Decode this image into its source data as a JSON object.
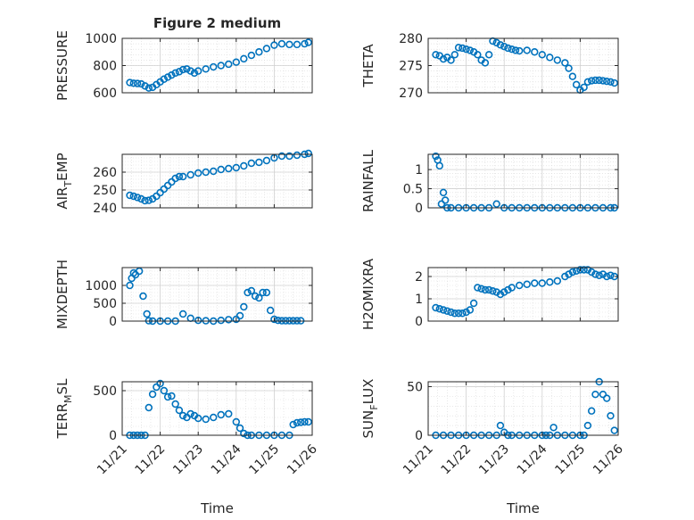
{
  "figure_title": "Figure 2 medium",
  "x_axis_label": "Time",
  "x_tick_labels": [
    "11/21",
    "11/22",
    "11/23",
    "11/24",
    "11/25",
    "11/26"
  ],
  "marker_color": "#0072BD",
  "chart_data": [
    {
      "type": "scatter",
      "ylabel": "PRESSURE",
      "title": "Figure 2 medium",
      "ylim": [
        600,
        1000
      ],
      "yticks": [
        600,
        800,
        1000
      ],
      "xlim": [
        0,
        5
      ],
      "grid": true,
      "x": [
        0.2,
        0.3,
        0.4,
        0.5,
        0.6,
        0.7,
        0.8,
        0.9,
        1.0,
        1.1,
        1.2,
        1.3,
        1.4,
        1.5,
        1.6,
        1.7,
        1.8,
        1.9,
        2.0,
        2.2,
        2.4,
        2.6,
        2.8,
        3.0,
        3.2,
        3.4,
        3.6,
        3.8,
        4.0,
        4.2,
        4.4,
        4.6,
        4.8,
        4.9
      ],
      "y": [
        675,
        670,
        668,
        665,
        650,
        635,
        640,
        660,
        680,
        700,
        715,
        730,
        745,
        755,
        770,
        775,
        760,
        745,
        760,
        775,
        790,
        800,
        810,
        825,
        850,
        875,
        900,
        925,
        950,
        960,
        955,
        955,
        960,
        970
      ]
    },
    {
      "type": "scatter",
      "ylabel": "THETA",
      "ylim": [
        270,
        280
      ],
      "yticks": [
        270,
        275,
        280
      ],
      "xlim": [
        0,
        5
      ],
      "grid": true,
      "x": [
        0.2,
        0.3,
        0.4,
        0.5,
        0.6,
        0.7,
        0.8,
        0.9,
        1.0,
        1.1,
        1.2,
        1.3,
        1.4,
        1.5,
        1.6,
        1.7,
        1.8,
        1.9,
        2.0,
        2.1,
        2.2,
        2.3,
        2.4,
        2.6,
        2.8,
        3.0,
        3.2,
        3.4,
        3.6,
        3.7,
        3.8,
        3.9,
        4.0,
        4.1,
        4.2,
        4.3,
        4.4,
        4.5,
        4.6,
        4.7,
        4.8,
        4.9
      ],
      "y": [
        277,
        276.8,
        276.2,
        276.5,
        276,
        277,
        278.3,
        278.2,
        278,
        277.8,
        277.5,
        277,
        276,
        275.5,
        277,
        279.5,
        279.2,
        278.8,
        278.5,
        278.2,
        278,
        277.8,
        277.7,
        277.8,
        277.5,
        277,
        276.5,
        276,
        275.5,
        274.5,
        273,
        271.5,
        270.5,
        271,
        272,
        272.2,
        272.3,
        272.3,
        272.2,
        272.1,
        272,
        271.8
      ]
    },
    {
      "type": "scatter",
      "ylabel": "AIR_TEMP",
      "ylim": [
        240,
        270
      ],
      "yticks": [
        240,
        250,
        260
      ],
      "xlim": [
        0,
        5
      ],
      "grid": true,
      "x": [
        0.2,
        0.3,
        0.4,
        0.5,
        0.6,
        0.7,
        0.8,
        0.9,
        1.0,
        1.1,
        1.2,
        1.3,
        1.4,
        1.5,
        1.6,
        1.8,
        2.0,
        2.2,
        2.4,
        2.6,
        2.8,
        3.0,
        3.2,
        3.4,
        3.6,
        3.8,
        4.0,
        4.2,
        4.4,
        4.6,
        4.8,
        4.9
      ],
      "y": [
        247,
        246.5,
        245.8,
        245,
        244,
        244.2,
        245,
        246.5,
        248.5,
        250.5,
        252.5,
        254.5,
        256.5,
        257.5,
        257.5,
        258.5,
        259.5,
        260,
        260.5,
        261.5,
        262,
        262.5,
        263.5,
        265,
        265.5,
        266.5,
        268,
        269,
        269,
        269.5,
        270,
        270.5
      ]
    },
    {
      "type": "scatter",
      "ylabel": "RAINFALL",
      "ylim": [
        0,
        1.4
      ],
      "yticks": [
        0,
        0.5,
        1
      ],
      "xlim": [
        0,
        5
      ],
      "grid": true,
      "x": [
        0.2,
        0.25,
        0.3,
        0.35,
        0.4,
        0.45,
        0.5,
        0.6,
        0.8,
        1.0,
        1.2,
        1.4,
        1.6,
        1.8,
        2.0,
        2.2,
        2.4,
        2.6,
        2.8,
        3.0,
        3.2,
        3.4,
        3.6,
        3.8,
        4.0,
        4.2,
        4.4,
        4.6,
        4.8,
        4.9
      ],
      "y": [
        1.35,
        1.25,
        1.1,
        0.1,
        0.4,
        0.2,
        0,
        0,
        0,
        0,
        0,
        0,
        0,
        0.1,
        0,
        0,
        0,
        0,
        0,
        0,
        0,
        0,
        0,
        0,
        0,
        0,
        0,
        0,
        0,
        0
      ]
    },
    {
      "type": "scatter",
      "ylabel": "MIXDEPTH",
      "ylim": [
        0,
        1500
      ],
      "yticks": [
        0,
        500,
        1000
      ],
      "xlim": [
        0,
        5
      ],
      "grid": true,
      "x": [
        0.2,
        0.25,
        0.3,
        0.35,
        0.45,
        0.55,
        0.65,
        0.7,
        0.8,
        1.0,
        1.2,
        1.4,
        1.6,
        1.8,
        2.0,
        2.2,
        2.4,
        2.6,
        2.8,
        3.0,
        3.1,
        3.2,
        3.3,
        3.4,
        3.5,
        3.6,
        3.7,
        3.8,
        3.9,
        4.0,
        4.1,
        4.2,
        4.3,
        4.4,
        4.5,
        4.6,
        4.7
      ],
      "y": [
        1000,
        1200,
        1350,
        1300,
        1400,
        700,
        200,
        10,
        0,
        0,
        0,
        0,
        200,
        80,
        20,
        10,
        0,
        20,
        40,
        50,
        150,
        400,
        800,
        850,
        700,
        650,
        800,
        800,
        300,
        50,
        20,
        10,
        10,
        10,
        10,
        10,
        10
      ]
    },
    {
      "type": "scatter",
      "ylabel": "H2OMIXRA",
      "ylim": [
        0,
        2.4
      ],
      "yticks": [
        0,
        1,
        2
      ],
      "xlim": [
        0,
        5
      ],
      "grid": true,
      "x": [
        0.2,
        0.3,
        0.4,
        0.5,
        0.6,
        0.7,
        0.8,
        0.9,
        1.0,
        1.1,
        1.2,
        1.3,
        1.4,
        1.5,
        1.6,
        1.7,
        1.8,
        1.9,
        2.0,
        2.1,
        2.2,
        2.4,
        2.6,
        2.8,
        3.0,
        3.2,
        3.4,
        3.6,
        3.7,
        3.8,
        3.9,
        4.0,
        4.1,
        4.2,
        4.3,
        4.4,
        4.5,
        4.6,
        4.7,
        4.8,
        4.9
      ],
      "y": [
        0.6,
        0.55,
        0.5,
        0.45,
        0.4,
        0.35,
        0.35,
        0.35,
        0.4,
        0.5,
        0.8,
        1.5,
        1.45,
        1.4,
        1.4,
        1.35,
        1.3,
        1.2,
        1.3,
        1.4,
        1.5,
        1.6,
        1.65,
        1.7,
        1.7,
        1.75,
        1.8,
        2.0,
        2.1,
        2.2,
        2.25,
        2.3,
        2.3,
        2.3,
        2.2,
        2.1,
        2.05,
        2.1,
        2.0,
        2.05,
        2.0
      ]
    },
    {
      "type": "scatter",
      "ylabel": "TERR_MSL",
      "ylim": [
        0,
        600
      ],
      "yticks": [
        0,
        500
      ],
      "xlim": [
        0,
        5
      ],
      "grid": true,
      "x": [
        0.2,
        0.3,
        0.4,
        0.5,
        0.6,
        0.7,
        0.8,
        0.9,
        1.0,
        1.1,
        1.2,
        1.3,
        1.4,
        1.5,
        1.6,
        1.7,
        1.8,
        1.9,
        2.0,
        2.2,
        2.4,
        2.6,
        2.8,
        3.0,
        3.1,
        3.2,
        3.3,
        3.4,
        3.6,
        3.8,
        4.0,
        4.2,
        4.4,
        4.5,
        4.6,
        4.7,
        4.8,
        4.9
      ],
      "y": [
        0,
        0,
        0,
        0,
        0,
        310,
        460,
        540,
        580,
        500,
        430,
        440,
        350,
        280,
        220,
        200,
        240,
        220,
        190,
        180,
        200,
        230,
        240,
        150,
        80,
        20,
        0,
        0,
        0,
        0,
        0,
        0,
        0,
        120,
        140,
        145,
        150,
        150
      ]
    },
    {
      "type": "scatter",
      "ylabel": "SUN_FLUX",
      "ylim": [
        0,
        55
      ],
      "yticks": [
        0,
        50
      ],
      "xlim": [
        0,
        5
      ],
      "grid": true,
      "x": [
        0.2,
        0.4,
        0.6,
        0.8,
        1.0,
        1.2,
        1.4,
        1.6,
        1.8,
        1.9,
        2.0,
        2.1,
        2.2,
        2.4,
        2.6,
        2.8,
        3.0,
        3.1,
        3.2,
        3.3,
        3.4,
        3.6,
        3.8,
        4.0,
        4.1,
        4.2,
        4.3,
        4.4,
        4.5,
        4.6,
        4.7,
        4.8,
        4.9
      ],
      "y": [
        0,
        0,
        0,
        0,
        0,
        0,
        0,
        0,
        0,
        10,
        3,
        0,
        0,
        0,
        0,
        0,
        0,
        0,
        0,
        8,
        0,
        0,
        0,
        0,
        0,
        10,
        25,
        42,
        55,
        42,
        38,
        20,
        5
      ]
    }
  ]
}
